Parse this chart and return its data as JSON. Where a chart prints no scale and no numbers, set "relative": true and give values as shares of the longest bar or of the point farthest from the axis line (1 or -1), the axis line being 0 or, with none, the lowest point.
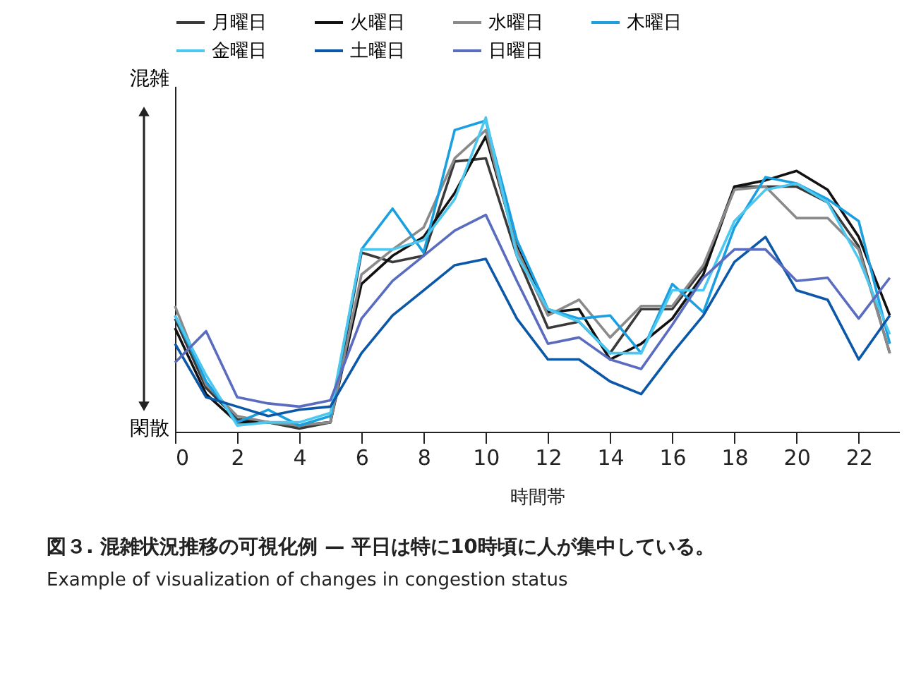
{
  "chart_data": {
    "type": "line",
    "relative": true,
    "title": "図３. 混雑状況推移の可視化例 — 平日は特に10時頃に人が集中している。",
    "subtitle": "Example of visualization of changes in congestion status",
    "xlabel": "時間帯",
    "annotations": [
      "混雑",
      "閑散"
    ],
    "x": [
      0,
      1,
      2,
      3,
      4,
      5,
      6,
      7,
      8,
      9,
      10,
      11,
      12,
      13,
      14,
      15,
      16,
      17,
      18,
      19,
      20,
      21,
      22,
      23
    ],
    "xlim": [
      0,
      23.3
    ],
    "xticks": [
      0,
      2,
      4,
      6,
      8,
      10,
      12,
      14,
      16,
      18,
      20,
      22
    ],
    "grid": false,
    "legend": "top",
    "marker": "none",
    "line_style": "solid",
    "series": [
      {
        "name": "月曜日",
        "color": "#3a3a3a",
        "values": [
          0.36,
          0.14,
          0.04,
          0.03,
          0.01,
          0.03,
          0.57,
          0.54,
          0.56,
          0.86,
          0.87,
          0.56,
          0.33,
          0.35,
          0.25,
          0.39,
          0.39,
          0.52,
          0.78,
          0.78,
          0.78,
          0.73,
          0.59,
          0.25
        ]
      },
      {
        "name": "火曜日",
        "color": "#111111",
        "values": [
          0.33,
          0.12,
          0.03,
          0.03,
          0.02,
          0.03,
          0.47,
          0.56,
          0.62,
          0.76,
          0.94,
          0.59,
          0.38,
          0.39,
          0.23,
          0.28,
          0.36,
          0.5,
          0.78,
          0.8,
          0.83,
          0.77,
          0.62,
          0.37
        ]
      },
      {
        "name": "水曜日",
        "color": "#8a8a8a",
        "values": [
          0.4,
          0.15,
          0.05,
          0.03,
          0.02,
          0.03,
          0.5,
          0.58,
          0.65,
          0.87,
          0.96,
          0.58,
          0.37,
          0.42,
          0.3,
          0.4,
          0.4,
          0.53,
          0.77,
          0.78,
          0.68,
          0.68,
          0.58,
          0.25
        ]
      },
      {
        "name": "木曜日",
        "color": "#1aa0e0",
        "values": [
          0.37,
          0.16,
          0.03,
          0.07,
          0.02,
          0.05,
          0.58,
          0.71,
          0.57,
          0.96,
          0.99,
          0.61,
          0.39,
          0.36,
          0.37,
          0.25,
          0.47,
          0.38,
          0.65,
          0.81,
          0.79,
          0.74,
          0.67,
          0.28
        ]
      },
      {
        "name": "金曜日",
        "color": "#4cc8f0",
        "values": [
          0.37,
          0.18,
          0.02,
          0.03,
          0.03,
          0.06,
          0.58,
          0.58,
          0.61,
          0.74,
          1.0,
          0.56,
          0.39,
          0.35,
          0.25,
          0.25,
          0.45,
          0.45,
          0.67,
          0.77,
          0.79,
          0.73,
          0.55,
          0.31
        ]
      },
      {
        "name": "土曜日",
        "color": "#0b57a8",
        "values": [
          0.28,
          0.11,
          0.08,
          0.05,
          0.07,
          0.08,
          0.25,
          0.37,
          0.45,
          0.53,
          0.55,
          0.36,
          0.23,
          0.23,
          0.16,
          0.12,
          0.25,
          0.37,
          0.54,
          0.62,
          0.45,
          0.42,
          0.23,
          0.37
        ]
      },
      {
        "name": "日曜日",
        "color": "#5a6cbf",
        "values": [
          0.22,
          0.32,
          0.11,
          0.09,
          0.08,
          0.1,
          0.36,
          0.48,
          0.56,
          0.64,
          0.69,
          0.48,
          0.28,
          0.3,
          0.23,
          0.2,
          0.34,
          0.49,
          0.58,
          0.58,
          0.48,
          0.49,
          0.36,
          0.49
        ]
      }
    ]
  }
}
